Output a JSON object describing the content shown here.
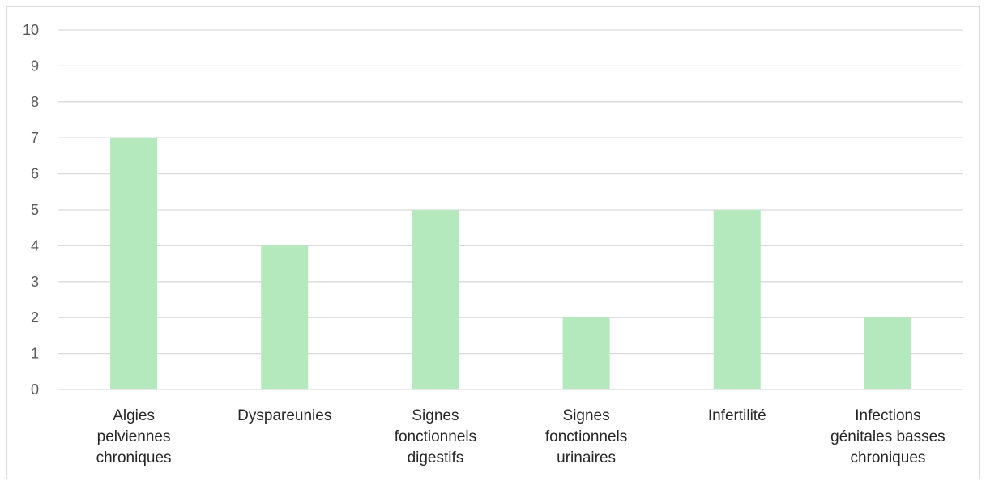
{
  "colors": {
    "bar": "#b3e9bd",
    "gridline": "#d9d9d9",
    "axis_text": "#595959",
    "category_text": "#262626"
  },
  "chart_data": {
    "type": "bar",
    "title": "",
    "xlabel": "",
    "ylabel": "",
    "ylim": [
      0,
      10
    ],
    "yticks": [
      "0",
      "1",
      "2",
      "3",
      "4",
      "5",
      "6",
      "7",
      "8",
      "9",
      "10"
    ],
    "grid": true,
    "legend": "none",
    "categories": [
      [
        "Algies",
        "pelviennes",
        "chroniques"
      ],
      [
        "Dyspareunies"
      ],
      [
        "Signes",
        "fonctionnels",
        "digestifs"
      ],
      [
        "Signes",
        "fonctionnels",
        "urinaires"
      ],
      [
        "Infertilité"
      ],
      [
        "Infections",
        "génitales basses",
        "chroniques"
      ]
    ],
    "values": [
      7,
      4,
      5,
      2,
      5,
      2
    ]
  }
}
